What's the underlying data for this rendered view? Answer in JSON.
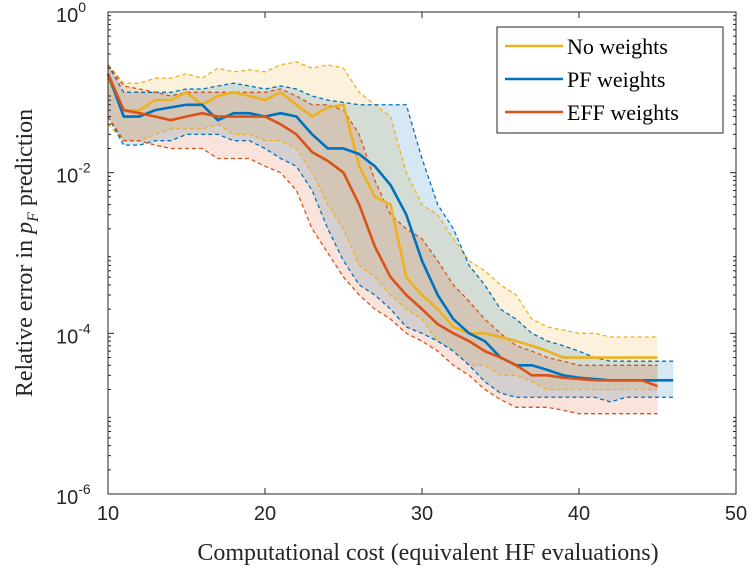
{
  "chart_data": {
    "type": "line",
    "title": "",
    "xlabel": "Computational cost (equivalent HF evaluations)",
    "ylabel": "Relative error in p_F prediction",
    "xlim": [
      10,
      50
    ],
    "ylim": [
      1e-06,
      1
    ],
    "yscale": "log",
    "grid": false,
    "legend_position": "top-right",
    "x_ticks": [
      "10",
      "20",
      "30",
      "40",
      "50"
    ],
    "y_ticks": [
      {
        "value": 1e-06,
        "base": "10",
        "exp": "-6"
      },
      {
        "value": 0.0001,
        "base": "10",
        "exp": "-4"
      },
      {
        "value": 0.01,
        "base": "10",
        "exp": "-2"
      },
      {
        "value": 1,
        "base": "10",
        "exp": "0"
      }
    ],
    "series": [
      {
        "name": "No weights",
        "color": "#EDB120",
        "x": [
          10,
          11,
          12,
          13,
          14,
          15,
          16,
          17,
          18,
          19,
          20,
          21,
          22,
          23,
          24,
          25,
          26,
          27,
          28,
          29,
          30,
          31,
          32,
          33,
          34,
          35,
          36,
          37,
          38,
          39,
          40,
          41,
          42,
          43,
          44,
          45
        ],
        "median": [
          0.15,
          0.06,
          0.06,
          0.08,
          0.08,
          0.1,
          0.07,
          0.09,
          0.1,
          0.09,
          0.08,
          0.1,
          0.07,
          0.05,
          0.065,
          0.07,
          0.012,
          0.005,
          0.004,
          0.0005,
          0.0003,
          0.0002,
          0.00012,
          0.0001,
          0.0001,
          9e-05,
          8e-05,
          7e-05,
          6e-05,
          5e-05,
          5e-05,
          5e-05,
          5e-05,
          5e-05,
          5e-05,
          5e-05
        ],
        "upper": [
          0.22,
          0.13,
          0.13,
          0.15,
          0.15,
          0.17,
          0.15,
          0.2,
          0.18,
          0.19,
          0.18,
          0.22,
          0.24,
          0.2,
          0.22,
          0.2,
          0.1,
          0.07,
          0.05,
          0.01,
          0.004,
          0.003,
          0.0015,
          0.0008,
          0.0006,
          0.0004,
          0.0003,
          0.00015,
          0.00012,
          0.00011,
          0.0001,
          0.0001,
          9e-05,
          9e-05,
          9e-05,
          9e-05
        ],
        "lower": [
          0.04,
          0.025,
          0.025,
          0.03,
          0.035,
          0.035,
          0.035,
          0.04,
          0.03,
          0.03,
          0.025,
          0.025,
          0.02,
          0.01,
          0.004,
          0.002,
          0.0007,
          0.0005,
          0.0003,
          0.0002,
          0.00015,
          8e-05,
          6e-05,
          4e-05,
          4e-05,
          3e-05,
          3e-05,
          2.5e-05,
          2e-05,
          2e-05,
          2e-05,
          2e-05,
          2e-05,
          2e-05,
          2e-05,
          2e-05
        ]
      },
      {
        "name": "PF weights",
        "color": "#0072BD",
        "x": [
          10,
          11,
          12,
          13,
          14,
          15,
          16,
          17,
          18,
          19,
          20,
          21,
          22,
          23,
          24,
          25,
          26,
          27,
          28,
          29,
          30,
          31,
          32,
          33,
          34,
          35,
          36,
          37,
          38,
          39,
          40,
          41,
          42,
          43,
          44,
          45,
          46
        ],
        "median": [
          0.17,
          0.05,
          0.05,
          0.06,
          0.065,
          0.07,
          0.07,
          0.045,
          0.055,
          0.055,
          0.05,
          0.055,
          0.05,
          0.03,
          0.02,
          0.02,
          0.017,
          0.012,
          0.007,
          0.003,
          0.0008,
          0.0003,
          0.00015,
          0.0001,
          8e-05,
          5e-05,
          4e-05,
          4e-05,
          3.5e-05,
          3e-05,
          2.8e-05,
          2.7e-05,
          2.6e-05,
          2.6e-05,
          2.6e-05,
          2.6e-05,
          2.6e-05
        ],
        "upper": [
          0.22,
          0.1,
          0.1,
          0.1,
          0.1,
          0.11,
          0.11,
          0.12,
          0.13,
          0.12,
          0.11,
          0.12,
          0.11,
          0.09,
          0.08,
          0.075,
          0.07,
          0.07,
          0.07,
          0.07,
          0.015,
          0.004,
          0.002,
          0.0007,
          0.0004,
          0.0002,
          0.00015,
          0.0001,
          8e-05,
          7e-05,
          6e-05,
          5e-05,
          4.5e-05,
          4.5e-05,
          4.5e-05,
          4.5e-05,
          4.5e-05
        ],
        "lower": [
          0.05,
          0.022,
          0.022,
          0.025,
          0.025,
          0.03,
          0.03,
          0.03,
          0.025,
          0.025,
          0.02,
          0.015,
          0.012,
          0.006,
          0.002,
          0.0008,
          0.0004,
          0.0003,
          0.0002,
          0.00012,
          0.0001,
          8e-05,
          6e-05,
          4e-05,
          2.5e-05,
          1.8e-05,
          1.6e-05,
          1.6e-05,
          1.6e-05,
          1.6e-05,
          1.6e-05,
          1.6e-05,
          1.4e-05,
          1.6e-05,
          1.6e-05,
          1.6e-05,
          1.6e-05
        ]
      },
      {
        "name": "EFF weights",
        "color": "#D95319",
        "x": [
          10,
          11,
          12,
          13,
          14,
          15,
          16,
          17,
          18,
          19,
          20,
          21,
          22,
          23,
          24,
          25,
          26,
          27,
          28,
          29,
          30,
          31,
          32,
          33,
          34,
          35,
          36,
          37,
          38,
          39,
          40,
          41,
          42,
          43,
          44,
          45
        ],
        "median": [
          0.17,
          0.06,
          0.055,
          0.05,
          0.045,
          0.05,
          0.055,
          0.05,
          0.05,
          0.05,
          0.05,
          0.04,
          0.03,
          0.018,
          0.014,
          0.01,
          0.004,
          0.0012,
          0.0005,
          0.0003,
          0.0002,
          0.00013,
          0.0001,
          8e-05,
          6e-05,
          5e-05,
          4e-05,
          3e-05,
          3e-05,
          2.8e-05,
          2.7e-05,
          2.6e-05,
          2.6e-05,
          2.6e-05,
          2.6e-05,
          2.2e-05
        ],
        "upper": [
          0.22,
          0.12,
          0.11,
          0.1,
          0.09,
          0.1,
          0.1,
          0.1,
          0.1,
          0.1,
          0.1,
          0.11,
          0.09,
          0.07,
          0.07,
          0.06,
          0.03,
          0.008,
          0.003,
          0.002,
          0.0015,
          0.0008,
          0.0004,
          0.00025,
          0.00015,
          0.0001,
          7e-05,
          6e-05,
          5e-05,
          4.5e-05,
          4e-05,
          4e-05,
          4e-05,
          4e-05,
          4e-05,
          4e-05
        ],
        "lower": [
          0.05,
          0.025,
          0.025,
          0.022,
          0.02,
          0.02,
          0.02,
          0.015,
          0.015,
          0.015,
          0.012,
          0.01,
          0.006,
          0.002,
          0.001,
          0.0005,
          0.0003,
          0.0002,
          0.00015,
          0.0001,
          8e-05,
          6e-05,
          4e-05,
          3e-05,
          2e-05,
          1.5e-05,
          1.2e-05,
          1.2e-05,
          1.2e-05,
          1.1e-05,
          1e-05,
          1e-05,
          1e-05,
          1e-05,
          1e-05,
          1e-05
        ]
      }
    ]
  }
}
